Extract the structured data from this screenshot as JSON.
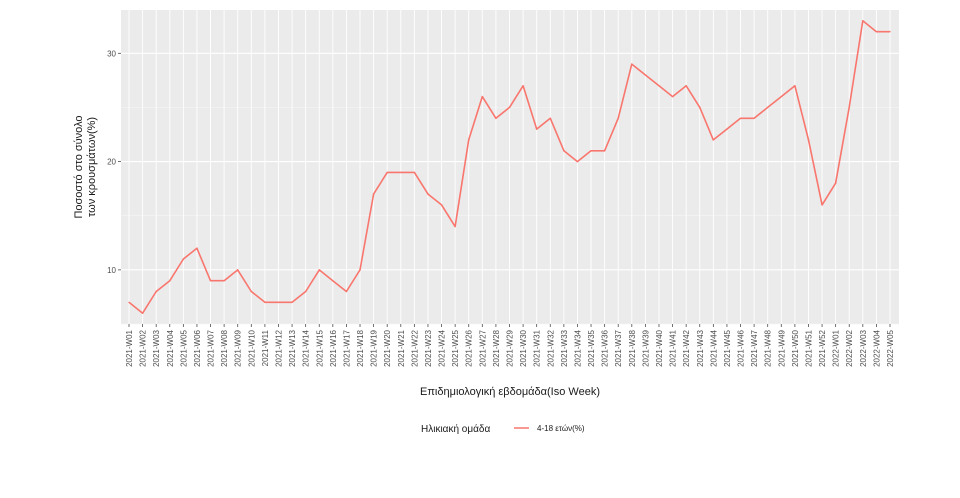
{
  "chart_data": {
    "type": "line",
    "xlabel": "Επιδημιολογική εβδομάδα(Iso Week)",
    "ylabel_lines": [
      "Ποσοστό στο σύνολο",
      "των κρουσμάτων(%)"
    ],
    "ylim": [
      5,
      34
    ],
    "yticks": [
      10,
      20,
      30
    ],
    "grid": true,
    "legend": {
      "title": "Ηλικιακή ομάδα",
      "position": "bottom"
    },
    "x": [
      "2021-W01",
      "2021-W02",
      "2021-W03",
      "2021-W04",
      "2021-W05",
      "2021-W06",
      "2021-W07",
      "2021-W08",
      "2021-W09",
      "2021-W10",
      "2021-W11",
      "2021-W12",
      "2021-W13",
      "2021-W14",
      "2021-W15",
      "2021-W16",
      "2021-W17",
      "2021-W18",
      "2021-W19",
      "2021-W20",
      "2021-W21",
      "2021-W22",
      "2021-W23",
      "2021-W24",
      "2021-W25",
      "2021-W26",
      "2021-W27",
      "2021-W28",
      "2021-W29",
      "2021-W30",
      "2021-W31",
      "2021-W32",
      "2021-W33",
      "2021-W34",
      "2021-W35",
      "2021-W36",
      "2021-W37",
      "2021-W38",
      "2021-W39",
      "2021-W40",
      "2021-W41",
      "2021-W42",
      "2021-W43",
      "2021-W44",
      "2021-W45",
      "2021-W46",
      "2021-W47",
      "2021-W48",
      "2021-W49",
      "2021-W50",
      "2021-W51",
      "2021-W52",
      "2022-W01",
      "2022-W02",
      "2022-W03",
      "2022-W04",
      "2022-W05"
    ],
    "series": [
      {
        "name": "4-18 ετών(%)",
        "color": "#f8766d",
        "values": [
          7,
          6,
          8,
          9,
          11,
          12,
          9,
          9,
          10,
          8,
          7,
          7,
          7,
          8,
          10,
          9,
          8,
          10,
          17,
          19,
          19,
          19,
          17,
          16,
          14,
          22,
          26,
          24,
          25,
          27,
          23,
          24,
          21,
          20,
          21,
          21,
          24,
          29,
          28,
          27,
          26,
          27,
          25,
          22,
          23,
          24,
          24,
          25,
          26,
          27,
          22,
          16,
          18,
          25,
          33,
          32,
          32
        ]
      }
    ]
  },
  "colors": {
    "panel_background": "#ebebeb",
    "grid": "#ffffff",
    "line": "#f8766d"
  }
}
